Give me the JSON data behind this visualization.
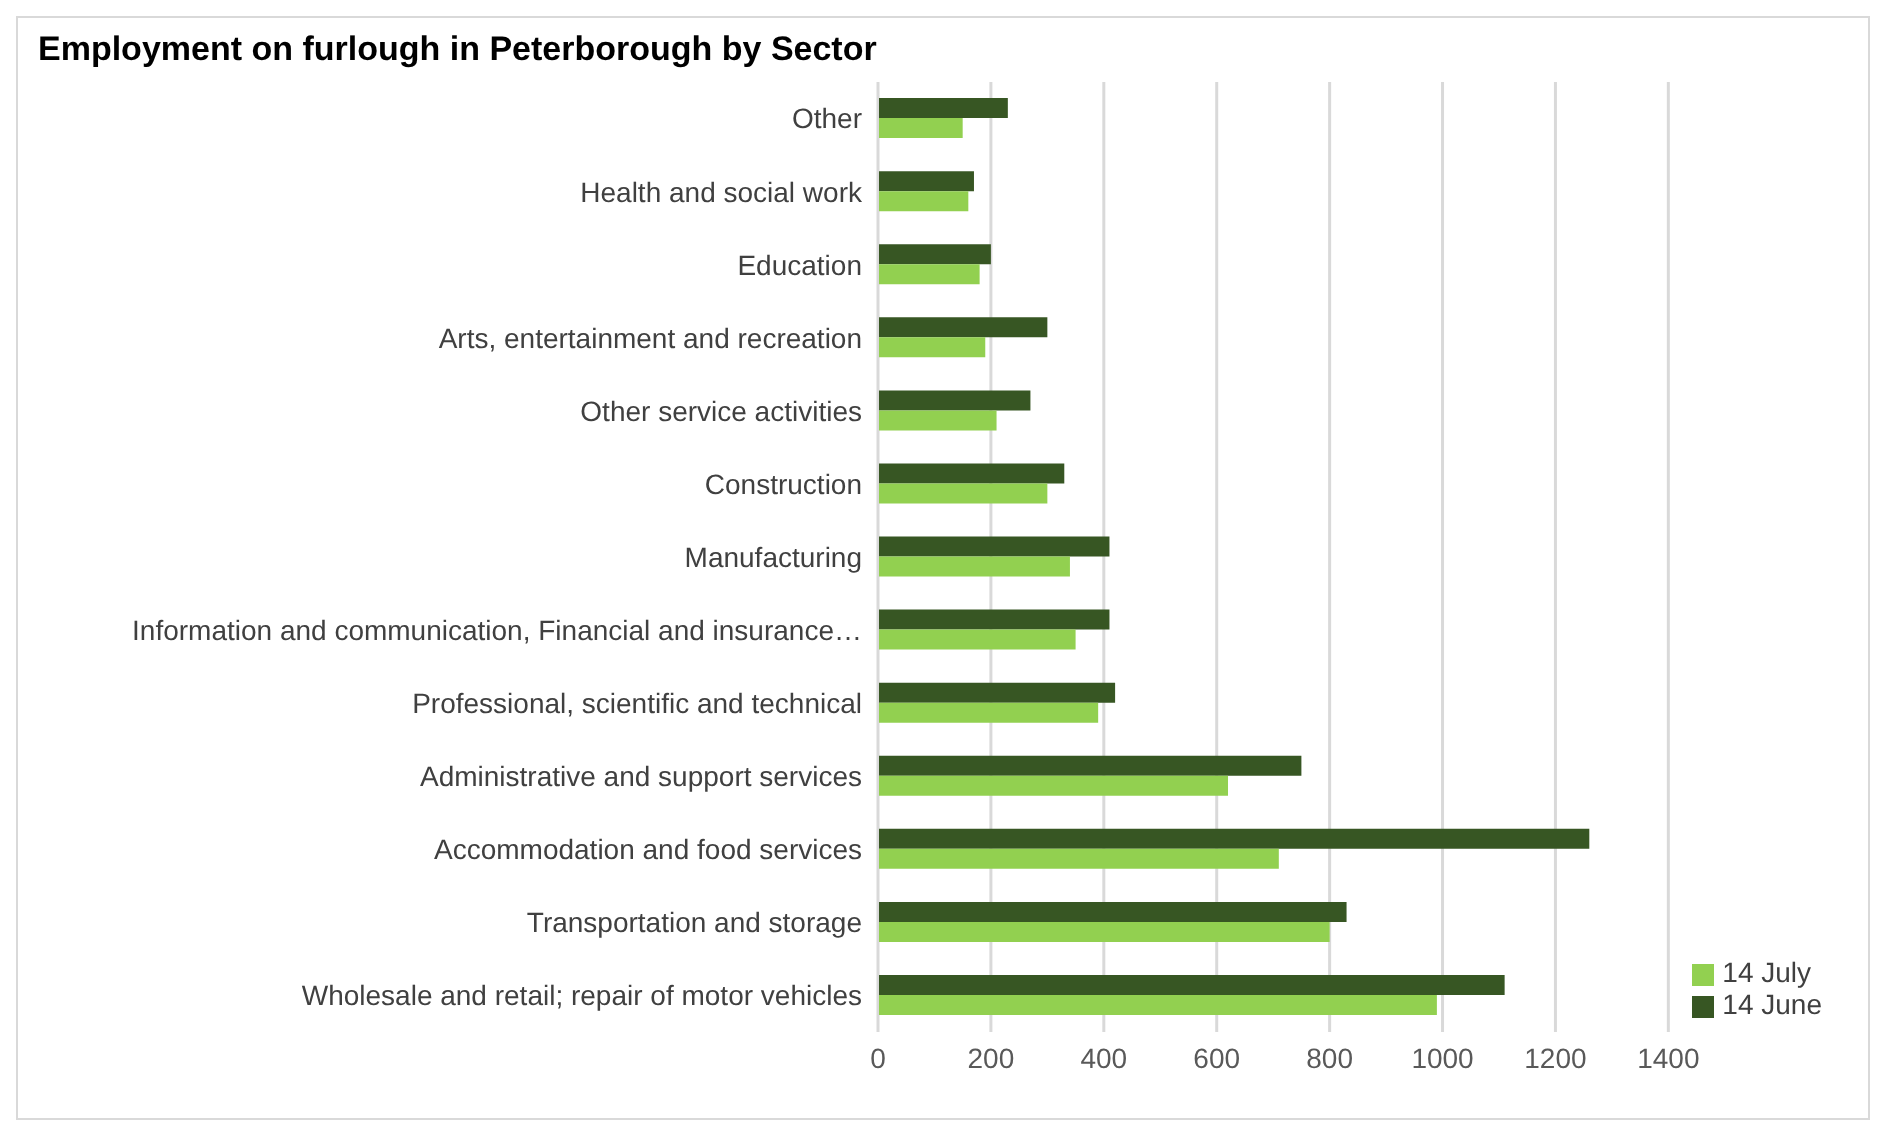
{
  "chart_data": {
    "type": "bar",
    "orientation": "horizontal",
    "title": "Employment on furlough in Peterborough by Sector",
    "categories": [
      "Other",
      "Health and social work",
      "Education",
      "Arts, entertainment and recreation",
      "Other service activities",
      "Construction",
      "Manufacturing",
      "Information and communication, Financial and insurance…",
      "Professional,  scientific and technical",
      "Administrative and support services",
      "Accommodation and food services",
      "Transportation and storage",
      "Wholesale and retail; repair of motor vehicles"
    ],
    "series": [
      {
        "name": "14 June",
        "color": "#375623",
        "values": [
          230,
          170,
          200,
          300,
          270,
          330,
          410,
          410,
          420,
          750,
          1260,
          830,
          1110
        ]
      },
      {
        "name": "14 July",
        "color": "#92d050",
        "values": [
          150,
          160,
          180,
          190,
          210,
          300,
          340,
          350,
          390,
          620,
          710,
          800,
          990
        ]
      }
    ],
    "xlim": [
      0,
      1400
    ],
    "xticks": [
      0,
      200,
      400,
      600,
      800,
      1000,
      1200,
      1400
    ],
    "grid": "x",
    "legend": "bottom right"
  }
}
